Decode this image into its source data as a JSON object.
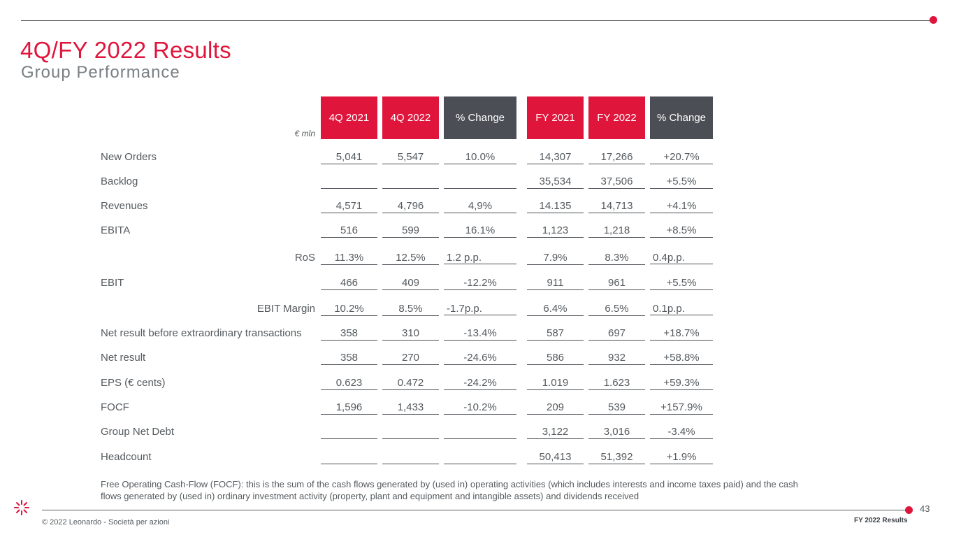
{
  "page": {
    "title": "4Q/FY 2022 Results",
    "subtitle": "Group Performance",
    "page_number": "43",
    "copyright": "© 2022 Leonardo - Società per azioni",
    "footer_label": "FY 2022 Results",
    "accent_color": "#e0153c",
    "dark_header_color": "#4b4f55"
  },
  "table": {
    "unit": "€ mln",
    "headers": [
      "4Q 2021",
      "4Q 2022",
      "% Change",
      "FY 2021",
      "FY 2022",
      "% Change"
    ],
    "rows": [
      {
        "label": "New Orders",
        "values": [
          "5,041",
          "5,547",
          "10.0%",
          "14,307",
          "17,266",
          "+20.7%"
        ]
      },
      {
        "label": "Backlog",
        "values": [
          "",
          "",
          "",
          "35,534",
          "37,506",
          "+5.5%"
        ]
      },
      {
        "label": "Revenues",
        "values": [
          "4,571",
          "4,796",
          "4,9%",
          "14.135",
          "14,713",
          "+4.1%"
        ]
      },
      {
        "label": "EBITA",
        "values": [
          "516",
          "599",
          "16.1%",
          "1,123",
          "1,218",
          "+8.5%"
        ]
      },
      {
        "label": "RoS",
        "values": [
          "11.3%",
          "12.5%",
          "1.2 p.p.",
          "7.9%",
          "8.3%",
          "0.4p.p."
        ]
      },
      {
        "label": "EBIT",
        "values": [
          "466",
          "409",
          "-12.2%",
          "911",
          "961",
          "+5.5%"
        ]
      },
      {
        "label": "EBIT Margin",
        "values": [
          "10.2%",
          "8.5%",
          "-1.7p.p.",
          "6.4%",
          "6.5%",
          "0.1p.p."
        ]
      },
      {
        "label": "Net result before extraordinary transactions",
        "values": [
          "358",
          "310",
          "-13.4%",
          "587",
          "697",
          "+18.7%"
        ]
      },
      {
        "label": "Net result",
        "values": [
          "358",
          "270",
          "-24.6%",
          "586",
          "932",
          "+58.8%"
        ]
      },
      {
        "label": "EPS (€ cents)",
        "values": [
          "0.623",
          "0.472",
          "-24.2%",
          "1.019",
          "1.623",
          "+59.3%"
        ]
      },
      {
        "label": "FOCF",
        "values": [
          "1,596",
          "1,433",
          "-10.2%",
          "209",
          "539",
          "+157.9%"
        ]
      },
      {
        "label": "Group Net Debt",
        "values": [
          "",
          "",
          "",
          "3,122",
          "3,016",
          "-3.4%"
        ]
      },
      {
        "label": "Headcount",
        "values": [
          "",
          "",
          "",
          "50,413",
          "51,392",
          "+1.9%"
        ]
      }
    ]
  },
  "footnote": "Free Operating Cash-Flow (FOCF): this is the sum of the cash flows generated by (used in) operating activities (which includes interests and income taxes paid) and the cash flows generated by (used in) ordinary investment activity (property, plant and equipment and intangible assets) and dividends received",
  "icons": {
    "logo": "leonardo-logo-icon"
  }
}
